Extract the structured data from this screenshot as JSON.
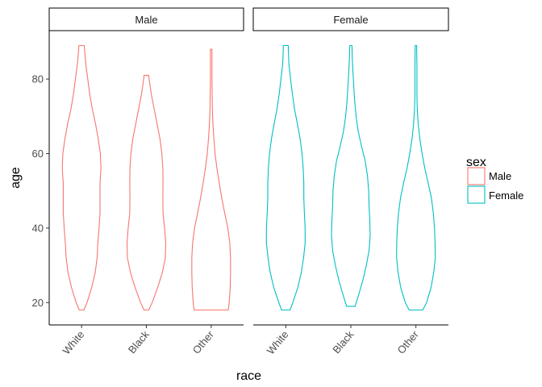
{
  "chart_data": {
    "type": "violin",
    "xlabel": "race",
    "ylabel": "age",
    "ylim": [
      14,
      93
    ],
    "yticks": [
      20,
      40,
      60,
      80
    ],
    "categories": [
      "White",
      "Black",
      "Other"
    ],
    "facets": [
      "Male",
      "Female"
    ],
    "legend": {
      "title": "sex",
      "position": "right",
      "items": [
        {
          "label": "Male",
          "color": "#F8766D"
        },
        {
          "label": "Female",
          "color": "#00BFC4"
        }
      ]
    },
    "violins": [
      {
        "facet": "Male",
        "category": "White",
        "color": "#F8766D",
        "profile": [
          [
            18,
            0.12
          ],
          [
            20,
            0.28
          ],
          [
            24,
            0.52
          ],
          [
            28,
            0.7
          ],
          [
            32,
            0.8
          ],
          [
            36,
            0.84
          ],
          [
            40,
            0.9
          ],
          [
            44,
            0.95
          ],
          [
            48,
            0.95
          ],
          [
            52,
            0.95
          ],
          [
            56,
            1.0
          ],
          [
            60,
            0.97
          ],
          [
            64,
            0.86
          ],
          [
            68,
            0.72
          ],
          [
            72,
            0.55
          ],
          [
            76,
            0.42
          ],
          [
            80,
            0.32
          ],
          [
            84,
            0.22
          ],
          [
            88,
            0.15
          ],
          [
            89,
            0.14
          ]
        ]
      },
      {
        "facet": "Male",
        "category": "Black",
        "color": "#F8766D",
        "profile": [
          [
            18,
            0.12
          ],
          [
            20,
            0.3
          ],
          [
            24,
            0.58
          ],
          [
            28,
            0.82
          ],
          [
            32,
            0.98
          ],
          [
            36,
            1.0
          ],
          [
            40,
            0.94
          ],
          [
            44,
            0.86
          ],
          [
            48,
            0.85
          ],
          [
            52,
            0.86
          ],
          [
            56,
            0.85
          ],
          [
            60,
            0.8
          ],
          [
            64,
            0.7
          ],
          [
            68,
            0.55
          ],
          [
            72,
            0.4
          ],
          [
            76,
            0.25
          ],
          [
            80,
            0.14
          ],
          [
            81,
            0.12
          ]
        ]
      },
      {
        "facet": "Male",
        "category": "Other",
        "color": "#F8766D",
        "profile": [
          [
            18,
            0.88
          ],
          [
            20,
            0.93
          ],
          [
            24,
            0.98
          ],
          [
            28,
            1.0
          ],
          [
            32,
            1.0
          ],
          [
            36,
            0.96
          ],
          [
            40,
            0.86
          ],
          [
            44,
            0.7
          ],
          [
            48,
            0.55
          ],
          [
            52,
            0.42
          ],
          [
            56,
            0.3
          ],
          [
            60,
            0.2
          ],
          [
            64,
            0.14
          ],
          [
            68,
            0.09
          ],
          [
            72,
            0.06
          ],
          [
            76,
            0.05
          ],
          [
            80,
            0.04
          ],
          [
            84,
            0.04
          ],
          [
            87,
            0.04
          ],
          [
            88,
            0.04
          ]
        ]
      },
      {
        "facet": "Female",
        "category": "White",
        "color": "#00BFC4",
        "profile": [
          [
            18,
            0.22
          ],
          [
            20,
            0.36
          ],
          [
            24,
            0.62
          ],
          [
            28,
            0.8
          ],
          [
            32,
            0.92
          ],
          [
            36,
            1.0
          ],
          [
            40,
            1.0
          ],
          [
            44,
            0.96
          ],
          [
            48,
            0.93
          ],
          [
            52,
            0.93
          ],
          [
            56,
            0.9
          ],
          [
            60,
            0.84
          ],
          [
            64,
            0.74
          ],
          [
            68,
            0.6
          ],
          [
            72,
            0.45
          ],
          [
            76,
            0.34
          ],
          [
            80,
            0.25
          ],
          [
            84,
            0.16
          ],
          [
            88,
            0.13
          ],
          [
            89,
            0.13
          ]
        ]
      },
      {
        "facet": "Female",
        "category": "Black",
        "color": "#00BFC4",
        "profile": [
          [
            19,
            0.22
          ],
          [
            22,
            0.4
          ],
          [
            26,
            0.62
          ],
          [
            30,
            0.8
          ],
          [
            34,
            0.94
          ],
          [
            38,
            1.0
          ],
          [
            42,
            0.98
          ],
          [
            46,
            0.94
          ],
          [
            50,
            0.92
          ],
          [
            54,
            0.86
          ],
          [
            58,
            0.74
          ],
          [
            62,
            0.55
          ],
          [
            66,
            0.38
          ],
          [
            70,
            0.27
          ],
          [
            74,
            0.2
          ],
          [
            78,
            0.15
          ],
          [
            82,
            0.11
          ],
          [
            86,
            0.07
          ],
          [
            89,
            0.06
          ]
        ]
      },
      {
        "facet": "Female",
        "category": "Other",
        "color": "#00BFC4",
        "profile": [
          [
            18,
            0.35
          ],
          [
            20,
            0.55
          ],
          [
            24,
            0.78
          ],
          [
            28,
            0.92
          ],
          [
            32,
            1.0
          ],
          [
            36,
            0.99
          ],
          [
            40,
            0.96
          ],
          [
            44,
            0.9
          ],
          [
            48,
            0.8
          ],
          [
            52,
            0.64
          ],
          [
            56,
            0.46
          ],
          [
            60,
            0.32
          ],
          [
            64,
            0.2
          ],
          [
            68,
            0.12
          ],
          [
            72,
            0.07
          ],
          [
            76,
            0.05
          ],
          [
            80,
            0.05
          ],
          [
            84,
            0.05
          ],
          [
            88,
            0.04
          ],
          [
            89,
            0.04
          ]
        ]
      }
    ]
  }
}
